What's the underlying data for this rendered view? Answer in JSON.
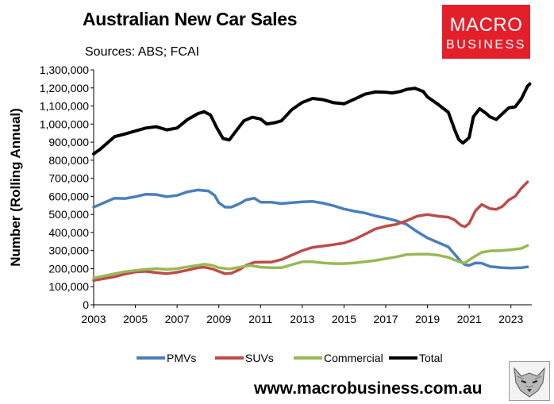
{
  "header": {
    "title": "Australian New Car Sales",
    "subtitle": "Sources: ABS; FCAI",
    "logo_line1": "MACRO",
    "logo_line2": "BUSINESS"
  },
  "footer": {
    "url": "www.macrobusiness.com.au"
  },
  "chart_data": {
    "type": "line",
    "title": "Australian New Car Sales",
    "subtitle": "Sources: ABS; FCAI",
    "xlabel": "",
    "ylabel": "Number (Rolling Annual)",
    "xlim": [
      2003,
      2024
    ],
    "ylim": [
      0,
      1300000
    ],
    "x_ticks": [
      2003,
      2005,
      2007,
      2009,
      2011,
      2013,
      2015,
      2017,
      2019,
      2021,
      2023
    ],
    "y_ticks": [
      0,
      100000,
      200000,
      300000,
      400000,
      500000,
      600000,
      700000,
      800000,
      900000,
      1000000,
      1100000,
      1200000,
      1300000
    ],
    "y_tick_labels": [
      "0",
      "100,000",
      "200,000",
      "300,000",
      "400,000",
      "500,000",
      "600,000",
      "700,000",
      "800,000",
      "900,000",
      "1,000,000",
      "1,100,000",
      "1,200,000",
      "1,300,000"
    ],
    "grid": false,
    "legend_position": "bottom",
    "series": [
      {
        "name": "PMVs",
        "color": "#4a7ebb",
        "points": [
          [
            2003.0,
            540000
          ],
          [
            2003.5,
            565000
          ],
          [
            2004.0,
            590000
          ],
          [
            2004.5,
            588000
          ],
          [
            2005.0,
            598000
          ],
          [
            2005.5,
            612000
          ],
          [
            2006.0,
            610000
          ],
          [
            2006.5,
            598000
          ],
          [
            2007.0,
            605000
          ],
          [
            2007.5,
            625000
          ],
          [
            2008.0,
            635000
          ],
          [
            2008.5,
            630000
          ],
          [
            2008.8,
            605000
          ],
          [
            2009.0,
            565000
          ],
          [
            2009.3,
            540000
          ],
          [
            2009.6,
            540000
          ],
          [
            2010.0,
            560000
          ],
          [
            2010.3,
            580000
          ],
          [
            2010.7,
            590000
          ],
          [
            2011.0,
            568000
          ],
          [
            2011.5,
            568000
          ],
          [
            2012.0,
            560000
          ],
          [
            2012.5,
            565000
          ],
          [
            2013.0,
            570000
          ],
          [
            2013.5,
            572000
          ],
          [
            2014.0,
            562000
          ],
          [
            2014.5,
            548000
          ],
          [
            2015.0,
            530000
          ],
          [
            2015.5,
            518000
          ],
          [
            2016.0,
            508000
          ],
          [
            2016.5,
            492000
          ],
          [
            2017.0,
            480000
          ],
          [
            2017.5,
            465000
          ],
          [
            2018.0,
            445000
          ],
          [
            2018.5,
            405000
          ],
          [
            2019.0,
            370000
          ],
          [
            2019.5,
            345000
          ],
          [
            2020.0,
            320000
          ],
          [
            2020.3,
            280000
          ],
          [
            2020.6,
            240000
          ],
          [
            2020.8,
            222000
          ],
          [
            2021.0,
            218000
          ],
          [
            2021.3,
            232000
          ],
          [
            2021.6,
            230000
          ],
          [
            2022.0,
            212000
          ],
          [
            2022.5,
            206000
          ],
          [
            2023.0,
            203000
          ],
          [
            2023.5,
            205000
          ],
          [
            2023.8,
            210000
          ]
        ]
      },
      {
        "name": "SUVs",
        "color": "#be4b48",
        "points": [
          [
            2003.0,
            135000
          ],
          [
            2003.5,
            145000
          ],
          [
            2004.0,
            155000
          ],
          [
            2004.5,
            170000
          ],
          [
            2005.0,
            182000
          ],
          [
            2005.5,
            185000
          ],
          [
            2006.0,
            178000
          ],
          [
            2006.5,
            172000
          ],
          [
            2007.0,
            180000
          ],
          [
            2007.5,
            192000
          ],
          [
            2008.0,
            205000
          ],
          [
            2008.3,
            208000
          ],
          [
            2008.7,
            198000
          ],
          [
            2009.0,
            185000
          ],
          [
            2009.3,
            172000
          ],
          [
            2009.6,
            175000
          ],
          [
            2010.0,
            195000
          ],
          [
            2010.3,
            218000
          ],
          [
            2010.7,
            235000
          ],
          [
            2011.0,
            236000
          ],
          [
            2011.5,
            236000
          ],
          [
            2012.0,
            250000
          ],
          [
            2012.5,
            275000
          ],
          [
            2013.0,
            300000
          ],
          [
            2013.5,
            318000
          ],
          [
            2014.0,
            325000
          ],
          [
            2014.5,
            333000
          ],
          [
            2015.0,
            342000
          ],
          [
            2015.5,
            362000
          ],
          [
            2016.0,
            390000
          ],
          [
            2016.5,
            420000
          ],
          [
            2017.0,
            435000
          ],
          [
            2017.5,
            445000
          ],
          [
            2018.0,
            465000
          ],
          [
            2018.5,
            490000
          ],
          [
            2019.0,
            500000
          ],
          [
            2019.5,
            490000
          ],
          [
            2020.0,
            485000
          ],
          [
            2020.3,
            470000
          ],
          [
            2020.6,
            440000
          ],
          [
            2020.8,
            432000
          ],
          [
            2021.0,
            450000
          ],
          [
            2021.3,
            520000
          ],
          [
            2021.6,
            555000
          ],
          [
            2022.0,
            532000
          ],
          [
            2022.3,
            528000
          ],
          [
            2022.6,
            545000
          ],
          [
            2022.9,
            580000
          ],
          [
            2023.2,
            600000
          ],
          [
            2023.5,
            645000
          ],
          [
            2023.8,
            680000
          ]
        ]
      },
      {
        "name": "Commercial",
        "color": "#98b954",
        "points": [
          [
            2003.0,
            148000
          ],
          [
            2003.5,
            160000
          ],
          [
            2004.0,
            172000
          ],
          [
            2004.5,
            183000
          ],
          [
            2005.0,
            190000
          ],
          [
            2005.5,
            196000
          ],
          [
            2006.0,
            200000
          ],
          [
            2006.5,
            196000
          ],
          [
            2007.0,
            200000
          ],
          [
            2007.5,
            210000
          ],
          [
            2008.0,
            218000
          ],
          [
            2008.3,
            225000
          ],
          [
            2008.7,
            218000
          ],
          [
            2009.0,
            205000
          ],
          [
            2009.5,
            198000
          ],
          [
            2010.0,
            208000
          ],
          [
            2010.5,
            218000
          ],
          [
            2011.0,
            208000
          ],
          [
            2011.5,
            205000
          ],
          [
            2012.0,
            205000
          ],
          [
            2012.5,
            222000
          ],
          [
            2013.0,
            238000
          ],
          [
            2013.5,
            238000
          ],
          [
            2014.0,
            232000
          ],
          [
            2014.5,
            228000
          ],
          [
            2015.0,
            228000
          ],
          [
            2015.5,
            232000
          ],
          [
            2016.0,
            238000
          ],
          [
            2016.5,
            245000
          ],
          [
            2017.0,
            255000
          ],
          [
            2017.5,
            265000
          ],
          [
            2018.0,
            278000
          ],
          [
            2018.5,
            280000
          ],
          [
            2019.0,
            280000
          ],
          [
            2019.5,
            275000
          ],
          [
            2020.0,
            262000
          ],
          [
            2020.3,
            248000
          ],
          [
            2020.6,
            235000
          ],
          [
            2020.8,
            232000
          ],
          [
            2021.0,
            248000
          ],
          [
            2021.3,
            270000
          ],
          [
            2021.6,
            290000
          ],
          [
            2022.0,
            298000
          ],
          [
            2022.5,
            300000
          ],
          [
            2023.0,
            305000
          ],
          [
            2023.5,
            312000
          ],
          [
            2023.8,
            328000
          ]
        ]
      },
      {
        "name": "Total",
        "color": "#000000",
        "points": [
          [
            2003.0,
            835000
          ],
          [
            2003.3,
            860000
          ],
          [
            2003.7,
            900000
          ],
          [
            2004.0,
            930000
          ],
          [
            2004.5,
            945000
          ],
          [
            2005.0,
            962000
          ],
          [
            2005.5,
            978000
          ],
          [
            2006.0,
            985000
          ],
          [
            2006.5,
            968000
          ],
          [
            2007.0,
            978000
          ],
          [
            2007.5,
            1025000
          ],
          [
            2008.0,
            1058000
          ],
          [
            2008.3,
            1068000
          ],
          [
            2008.6,
            1050000
          ],
          [
            2008.9,
            980000
          ],
          [
            2009.2,
            920000
          ],
          [
            2009.5,
            912000
          ],
          [
            2009.8,
            958000
          ],
          [
            2010.2,
            1018000
          ],
          [
            2010.6,
            1038000
          ],
          [
            2011.0,
            1028000
          ],
          [
            2011.3,
            1000000
          ],
          [
            2011.7,
            1008000
          ],
          [
            2012.0,
            1018000
          ],
          [
            2012.5,
            1080000
          ],
          [
            2013.0,
            1120000
          ],
          [
            2013.5,
            1142000
          ],
          [
            2014.0,
            1135000
          ],
          [
            2014.5,
            1118000
          ],
          [
            2015.0,
            1112000
          ],
          [
            2015.5,
            1138000
          ],
          [
            2016.0,
            1165000
          ],
          [
            2016.5,
            1178000
          ],
          [
            2017.0,
            1176000
          ],
          [
            2017.3,
            1172000
          ],
          [
            2017.7,
            1180000
          ],
          [
            2018.0,
            1192000
          ],
          [
            2018.4,
            1198000
          ],
          [
            2018.8,
            1180000
          ],
          [
            2019.0,
            1150000
          ],
          [
            2019.5,
            1110000
          ],
          [
            2020.0,
            1065000
          ],
          [
            2020.3,
            970000
          ],
          [
            2020.5,
            915000
          ],
          [
            2020.7,
            895000
          ],
          [
            2021.0,
            925000
          ],
          [
            2021.2,
            1040000
          ],
          [
            2021.5,
            1085000
          ],
          [
            2021.8,
            1060000
          ],
          [
            2022.0,
            1040000
          ],
          [
            2022.3,
            1025000
          ],
          [
            2022.6,
            1058000
          ],
          [
            2022.9,
            1090000
          ],
          [
            2023.2,
            1095000
          ],
          [
            2023.5,
            1140000
          ],
          [
            2023.8,
            1210000
          ],
          [
            2023.9,
            1222000
          ]
        ]
      }
    ]
  }
}
